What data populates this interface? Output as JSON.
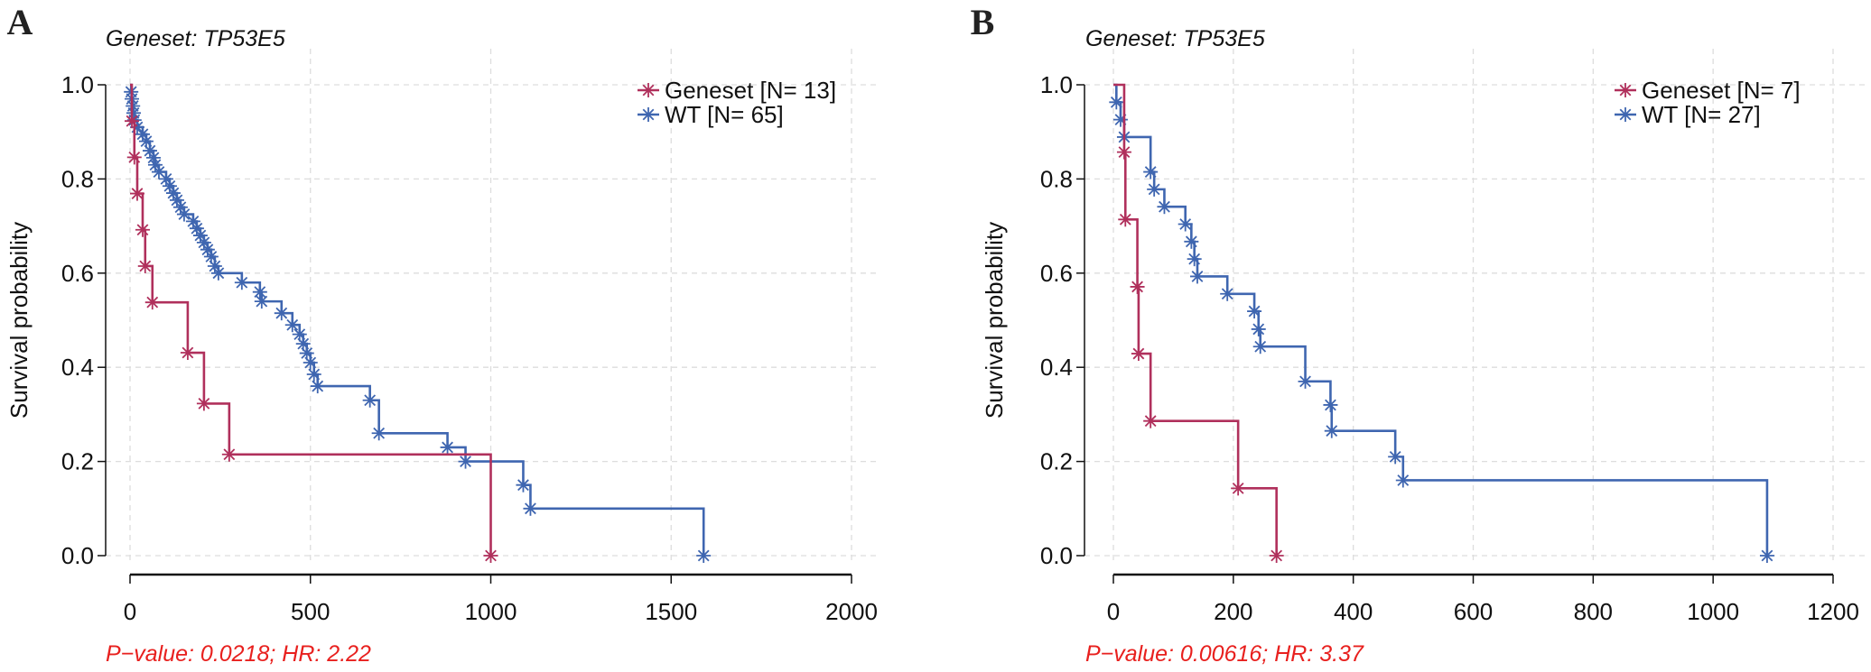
{
  "colors": {
    "geneset": "#B0305C",
    "wt": "#3F66B0",
    "annotation": "#E8201E"
  },
  "chart_data": [
    {
      "type": "line",
      "subtype": "kaplan-meier step",
      "panel_label": "A",
      "title": "Geneset: TP53E5",
      "ylabel": "Survival probability",
      "xlabel": "",
      "xlim": [
        0,
        2000
      ],
      "ylim": [
        0,
        1
      ],
      "xticks": [
        "0",
        "500",
        "1000",
        "1500",
        "2000"
      ],
      "yticks": [
        "0.0",
        "0.2",
        "0.4",
        "0.6",
        "0.8",
        "1.0"
      ],
      "grid": true,
      "legend_position": "top-right",
      "annotation": "P−value: 0.0218; HR: 2.22",
      "series": [
        {
          "name": "Geneset [N= 13]",
          "time": [
            5,
            12,
            20,
            35,
            42,
            62,
            160,
            205,
            275,
            1000
          ],
          "survival": [
            0.923,
            0.846,
            0.769,
            0.692,
            0.615,
            0.538,
            0.431,
            0.323,
            0.215,
            0.0
          ]
        },
        {
          "name": "WT [N= 65]",
          "time": [
            3,
            5,
            8,
            10,
            12,
            20,
            35,
            45,
            55,
            65,
            70,
            80,
            100,
            110,
            120,
            130,
            140,
            150,
            175,
            185,
            195,
            205,
            215,
            225,
            235,
            245,
            310,
            360,
            365,
            420,
            450,
            470,
            480,
            490,
            500,
            510,
            520,
            665,
            690,
            880,
            930,
            1090,
            1110,
            1590
          ],
          "survival": [
            0.985,
            0.97,
            0.955,
            0.94,
            0.925,
            0.91,
            0.895,
            0.88,
            0.86,
            0.845,
            0.83,
            0.815,
            0.8,
            0.785,
            0.77,
            0.755,
            0.74,
            0.725,
            0.71,
            0.695,
            0.68,
            0.665,
            0.65,
            0.635,
            0.615,
            0.6,
            0.58,
            0.56,
            0.54,
            0.515,
            0.49,
            0.47,
            0.45,
            0.43,
            0.41,
            0.385,
            0.36,
            0.33,
            0.26,
            0.23,
            0.2,
            0.15,
            0.1,
            0.0
          ]
        }
      ]
    },
    {
      "type": "line",
      "subtype": "kaplan-meier step",
      "panel_label": "B",
      "title": "Geneset: TP53E5",
      "ylabel": "Survival probability",
      "xlabel": "",
      "xlim": [
        0,
        1200
      ],
      "ylim": [
        0,
        1
      ],
      "xticks": [
        "0",
        "200",
        "400",
        "600",
        "800",
        "1000",
        "1200"
      ],
      "yticks": [
        "0.0",
        "0.2",
        "0.4",
        "0.6",
        "0.8",
        "1.0"
      ],
      "grid": true,
      "legend_position": "top-right",
      "annotation": "P−value: 0.00616; HR: 3.37",
      "series": [
        {
          "name": "Geneset [N= 7]",
          "time": [
            18,
            20,
            40,
            42,
            62,
            208,
            272
          ],
          "survival": [
            0.857,
            0.714,
            0.571,
            0.429,
            0.286,
            0.143,
            0.0
          ]
        },
        {
          "name": "WT [N= 27]",
          "time": [
            5,
            12,
            18,
            62,
            68,
            85,
            120,
            130,
            135,
            140,
            190,
            235,
            242,
            245,
            320,
            362,
            364,
            470,
            483,
            1090
          ],
          "survival": [
            0.963,
            0.926,
            0.889,
            0.815,
            0.778,
            0.741,
            0.704,
            0.667,
            0.63,
            0.593,
            0.556,
            0.519,
            0.481,
            0.444,
            0.37,
            0.32,
            0.265,
            0.21,
            0.16,
            0.0
          ]
        }
      ]
    }
  ]
}
